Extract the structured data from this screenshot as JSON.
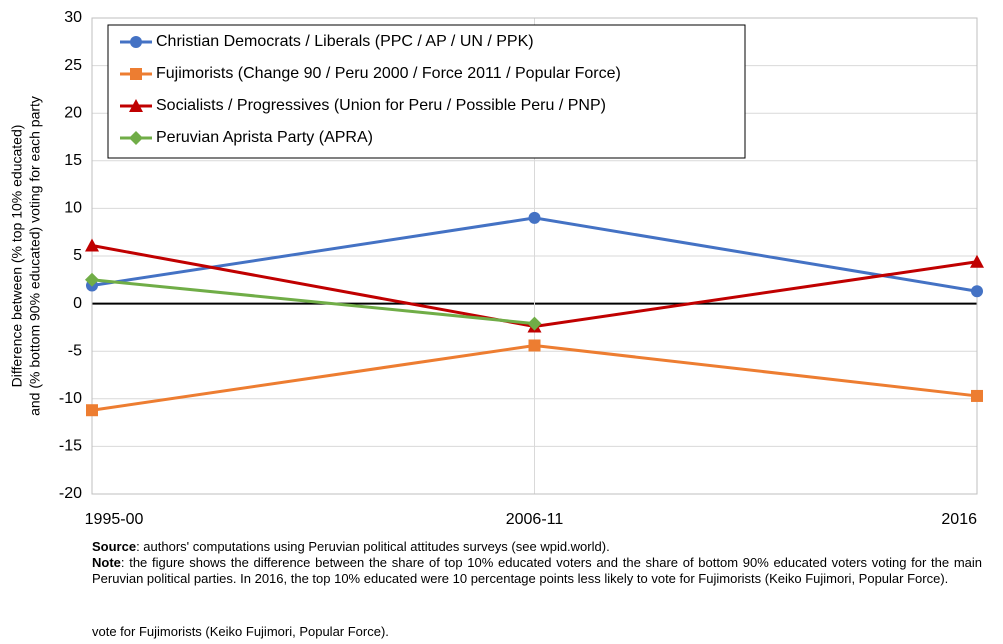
{
  "chart_data": {
    "type": "line",
    "ylabel": [
      "Difference between (% top 10% educated)",
      "and (% bottom 90% educated) voting for each party"
    ],
    "categories": [
      "1995-00",
      "2006-11",
      "2016"
    ],
    "series": [
      {
        "name": "Christian Democrats / Liberals (PPC / AP / UN / PPK)",
        "color": "#4472c4",
        "marker": "circle",
        "values": [
          1.9,
          9.0,
          1.3
        ]
      },
      {
        "name": "Fujimorists (Change 90 / Peru 2000 / Force 2011 / Popular Force)",
        "color": "#ed7d31",
        "marker": "square",
        "values": [
          -11.2,
          -4.4,
          -9.7
        ]
      },
      {
        "name": "Socialists / Progressives (Union for Peru / Possible Peru / PNP)",
        "color": "#c00000",
        "marker": "triangle",
        "values": [
          6.1,
          -2.4,
          4.4
        ]
      },
      {
        "name": "Peruvian Aprista Party (APRA)",
        "color": "#70ad47",
        "marker": "diamond",
        "values": [
          2.5,
          -2.1,
          null
        ]
      }
    ],
    "ylim": [
      -20,
      30
    ],
    "yticks": [
      -20,
      -15,
      -10,
      -5,
      0,
      5,
      10,
      15,
      20,
      25,
      30
    ],
    "grid": true,
    "legend": "top-left",
    "source": {
      "label": "Source",
      "text": ": authors' computations using Peruvian political attitudes surveys (see wpid.world)."
    },
    "note": {
      "label": "Note",
      "text": ": the figure shows the difference between the share of top 10% educated voters and the share of bottom 90% educated voters voting for the main Peruvian political parties. In 2016, the top 10% educated were 10 percentage points less likely to vote for Fujimorists (Keiko Fujimori, Popular Force)."
    },
    "extra_line": "vote for Fujimorists (Keiko Fujimori, Popular Force)."
  }
}
